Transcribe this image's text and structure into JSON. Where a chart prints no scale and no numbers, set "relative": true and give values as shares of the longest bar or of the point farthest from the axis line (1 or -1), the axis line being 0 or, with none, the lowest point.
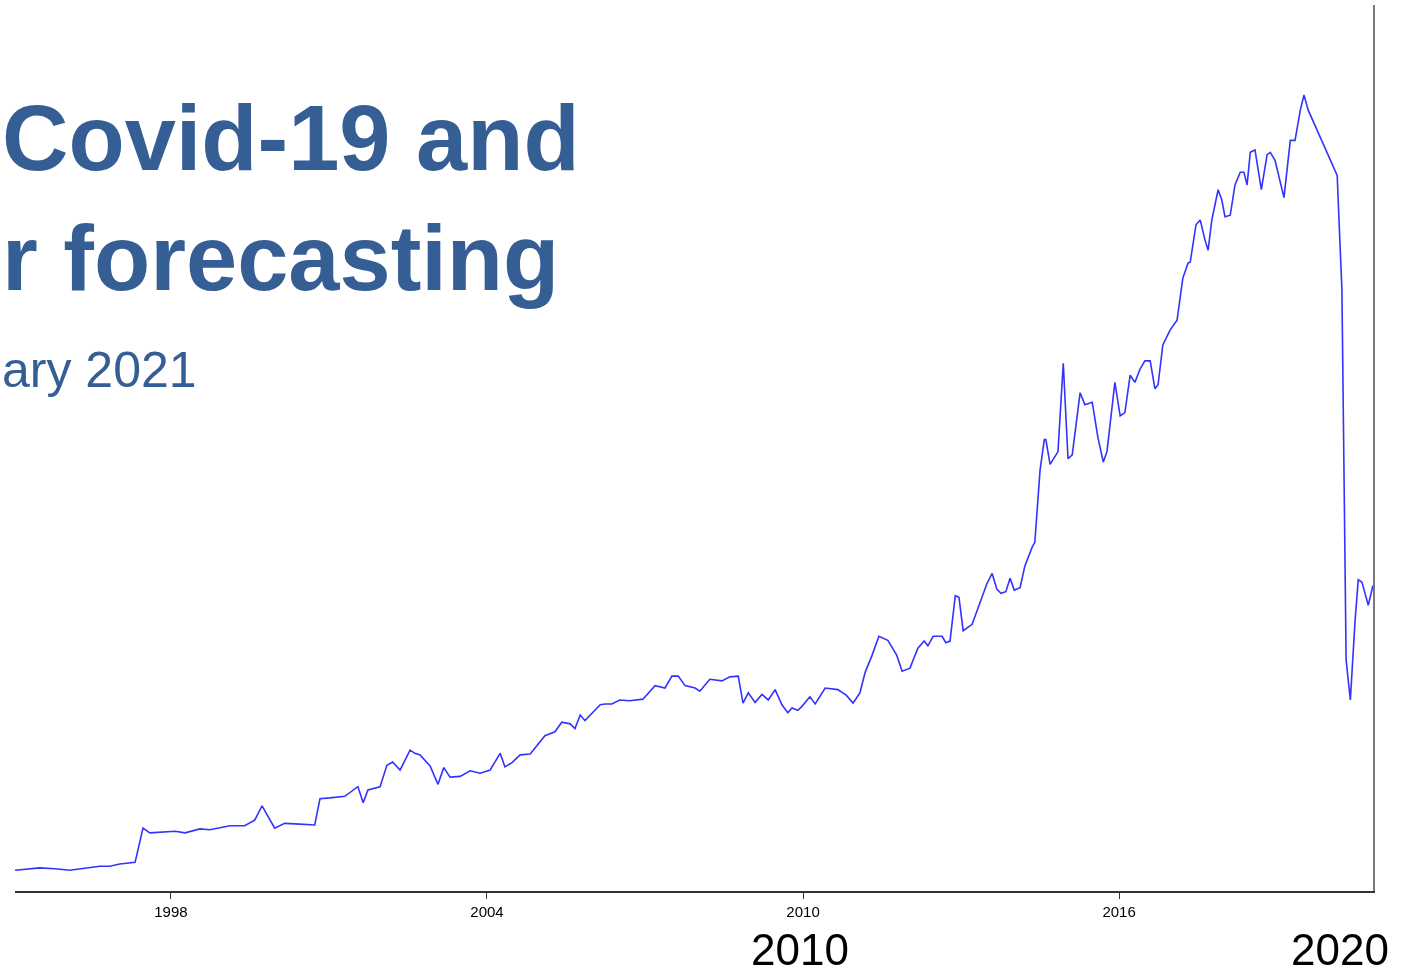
{
  "chart_data": {
    "type": "line",
    "title": "Covid-19 and\nr forecasting",
    "subtitle": "ary 2021",
    "relative": true,
    "xlim": [
      1995.04,
      2020.82
    ],
    "xticks": [
      1998,
      2004,
      2010,
      2016
    ],
    "marker": "none",
    "line_style": "solid",
    "annotations": [
      "2010",
      "2020"
    ],
    "series": [
      {
        "color": "#3333ff",
        "x": [
          1995.04,
          1995.51,
          1995.8,
          1996.08,
          1996.65,
          1996.84,
          1997.03,
          1997.32,
          1997.47,
          1997.6,
          1998.08,
          1998.27,
          1998.55,
          1998.74,
          1999.12,
          1999.4,
          1999.59,
          1999.73,
          1999.97,
          2000.16,
          2000.45,
          2000.73,
          2000.83,
          2001.02,
          2001.3,
          2001.55,
          2001.65,
          2001.74,
          2001.97,
          2002.1,
          2002.21,
          2002.35,
          2002.54,
          2002.63,
          2002.73,
          2002.92,
          2003.07,
          2003.18,
          2003.3,
          2003.49,
          2003.68,
          2003.87,
          2004.06,
          2004.25,
          2004.34,
          2004.47,
          2004.63,
          2004.82,
          2005.1,
          2005.29,
          2005.42,
          2005.58,
          2005.67,
          2005.77,
          2005.86,
          2006.15,
          2006.24,
          2006.37,
          2006.52,
          2006.71,
          2006.96,
          2007.19,
          2007.38,
          2007.51,
          2007.63,
          2007.76,
          2007.95,
          2008.04,
          2008.23,
          2008.46,
          2008.61,
          2008.77,
          2008.86,
          2008.96,
          2009.09,
          2009.22,
          2009.34,
          2009.47,
          2009.6,
          2009.71,
          2009.79,
          2009.9,
          2009.98,
          2010.13,
          2010.23,
          2010.42,
          2010.66,
          2010.82,
          2010.95,
          2011.08,
          2011.18,
          2011.31,
          2011.44,
          2011.61,
          2011.78,
          2011.88,
          2012.03,
          2012.18,
          2012.3,
          2012.37,
          2012.47,
          2012.64,
          2012.71,
          2012.79,
          2012.89,
          2012.96,
          2013.04,
          2013.21,
          2013.49,
          2013.59,
          2013.68,
          2013.76,
          2013.85,
          2013.93,
          2014.01,
          2014.12,
          2014.21,
          2014.35,
          2014.4,
          2014.5,
          2014.58,
          2014.61,
          2014.69,
          2014.84,
          2014.94,
          2015.03,
          2015.11,
          2015.26,
          2015.35,
          2015.49,
          2015.6,
          2015.7,
          2015.77,
          2015.92,
          2016.02,
          2016.11,
          2016.21,
          2016.3,
          2016.4,
          2016.49,
          2016.59,
          2016.68,
          2016.74,
          2016.83,
          2016.97,
          2017.1,
          2017.21,
          2017.31,
          2017.35,
          2017.46,
          2017.54,
          2017.63,
          2017.69,
          2017.76,
          2017.88,
          2017.95,
          2018.01,
          2018.11,
          2018.2,
          2018.3,
          2018.37,
          2018.43,
          2018.49,
          2018.58,
          2018.7,
          2018.81,
          2018.87,
          2018.96,
          2019.13,
          2019.25,
          2019.34,
          2019.44,
          2019.51,
          2019.59,
          2020.14,
          2020.23,
          2020.31,
          2020.39,
          2020.48,
          2020.54,
          2020.61,
          2020.73,
          2020.82
        ],
        "values": [
          0.026,
          0.029,
          0.028,
          0.026,
          0.031,
          0.031,
          0.034,
          0.036,
          0.079,
          0.073,
          0.075,
          0.073,
          0.078,
          0.077,
          0.082,
          0.082,
          0.089,
          0.107,
          0.079,
          0.085,
          0.084,
          0.083,
          0.116,
          0.117,
          0.119,
          0.131,
          0.111,
          0.127,
          0.131,
          0.158,
          0.162,
          0.152,
          0.177,
          0.173,
          0.171,
          0.157,
          0.134,
          0.155,
          0.143,
          0.144,
          0.151,
          0.148,
          0.152,
          0.173,
          0.156,
          0.161,
          0.171,
          0.172,
          0.195,
          0.2,
          0.212,
          0.21,
          0.204,
          0.221,
          0.214,
          0.234,
          0.235,
          0.235,
          0.24,
          0.239,
          0.241,
          0.258,
          0.255,
          0.27,
          0.27,
          0.258,
          0.255,
          0.251,
          0.266,
          0.264,
          0.269,
          0.27,
          0.236,
          0.249,
          0.237,
          0.247,
          0.24,
          0.253,
          0.234,
          0.224,
          0.23,
          0.227,
          0.232,
          0.244,
          0.235,
          0.255,
          0.253,
          0.246,
          0.236,
          0.249,
          0.275,
          0.296,
          0.32,
          0.315,
          0.296,
          0.276,
          0.28,
          0.305,
          0.314,
          0.308,
          0.32,
          0.32,
          0.312,
          0.314,
          0.371,
          0.369,
          0.327,
          0.335,
          0.386,
          0.399,
          0.379,
          0.374,
          0.376,
          0.393,
          0.378,
          0.381,
          0.408,
          0.432,
          0.438,
          0.529,
          0.567,
          0.567,
          0.536,
          0.552,
          0.663,
          0.543,
          0.548,
          0.626,
          0.611,
          0.614,
          0.569,
          0.539,
          0.552,
          0.639,
          0.597,
          0.601,
          0.648,
          0.639,
          0.656,
          0.666,
          0.666,
          0.631,
          0.636,
          0.686,
          0.705,
          0.717,
          0.77,
          0.789,
          0.79,
          0.837,
          0.843,
          0.818,
          0.805,
          0.843,
          0.881,
          0.868,
          0.847,
          0.849,
          0.887,
          0.903,
          0.903,
          0.887,
          0.928,
          0.931,
          0.881,
          0.925,
          0.928,
          0.918,
          0.871,
          0.943,
          0.943,
          0.981,
          1.0,
          0.981,
          0.899,
          0.755,
          0.29,
          0.24,
          0.34,
          0.391,
          0.388,
          0.359,
          0.384
        ]
      }
    ]
  }
}
